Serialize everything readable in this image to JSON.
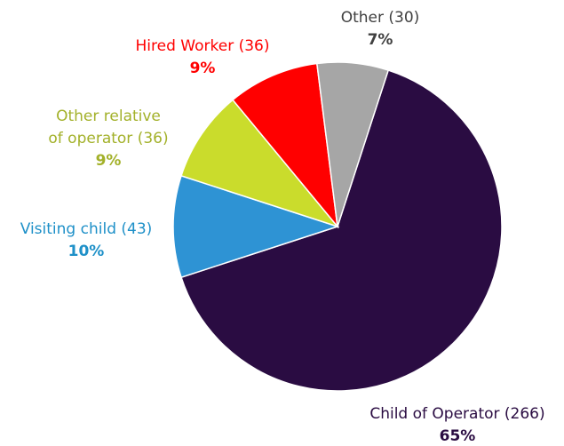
{
  "chart_data": {
    "type": "pie",
    "categories": [
      "Child of Operator (266)",
      "Visiting child (43)",
      "Other relative\nof operator (36)",
      "Hired Worker (36)",
      "Other (30)"
    ],
    "values": [
      65,
      10,
      9,
      9,
      7
    ],
    "value_labels": [
      "65%",
      "10%",
      "9%",
      "9%",
      "7%"
    ],
    "colors": [
      "#2a0c42",
      "#2e93d4",
      "#cadc2c",
      "#ff0000",
      "#a6a6a6"
    ],
    "label_colors": [
      "#2a0c42",
      "#1e90c8",
      "#a3b12a",
      "#ff0000",
      "#404040"
    ]
  }
}
